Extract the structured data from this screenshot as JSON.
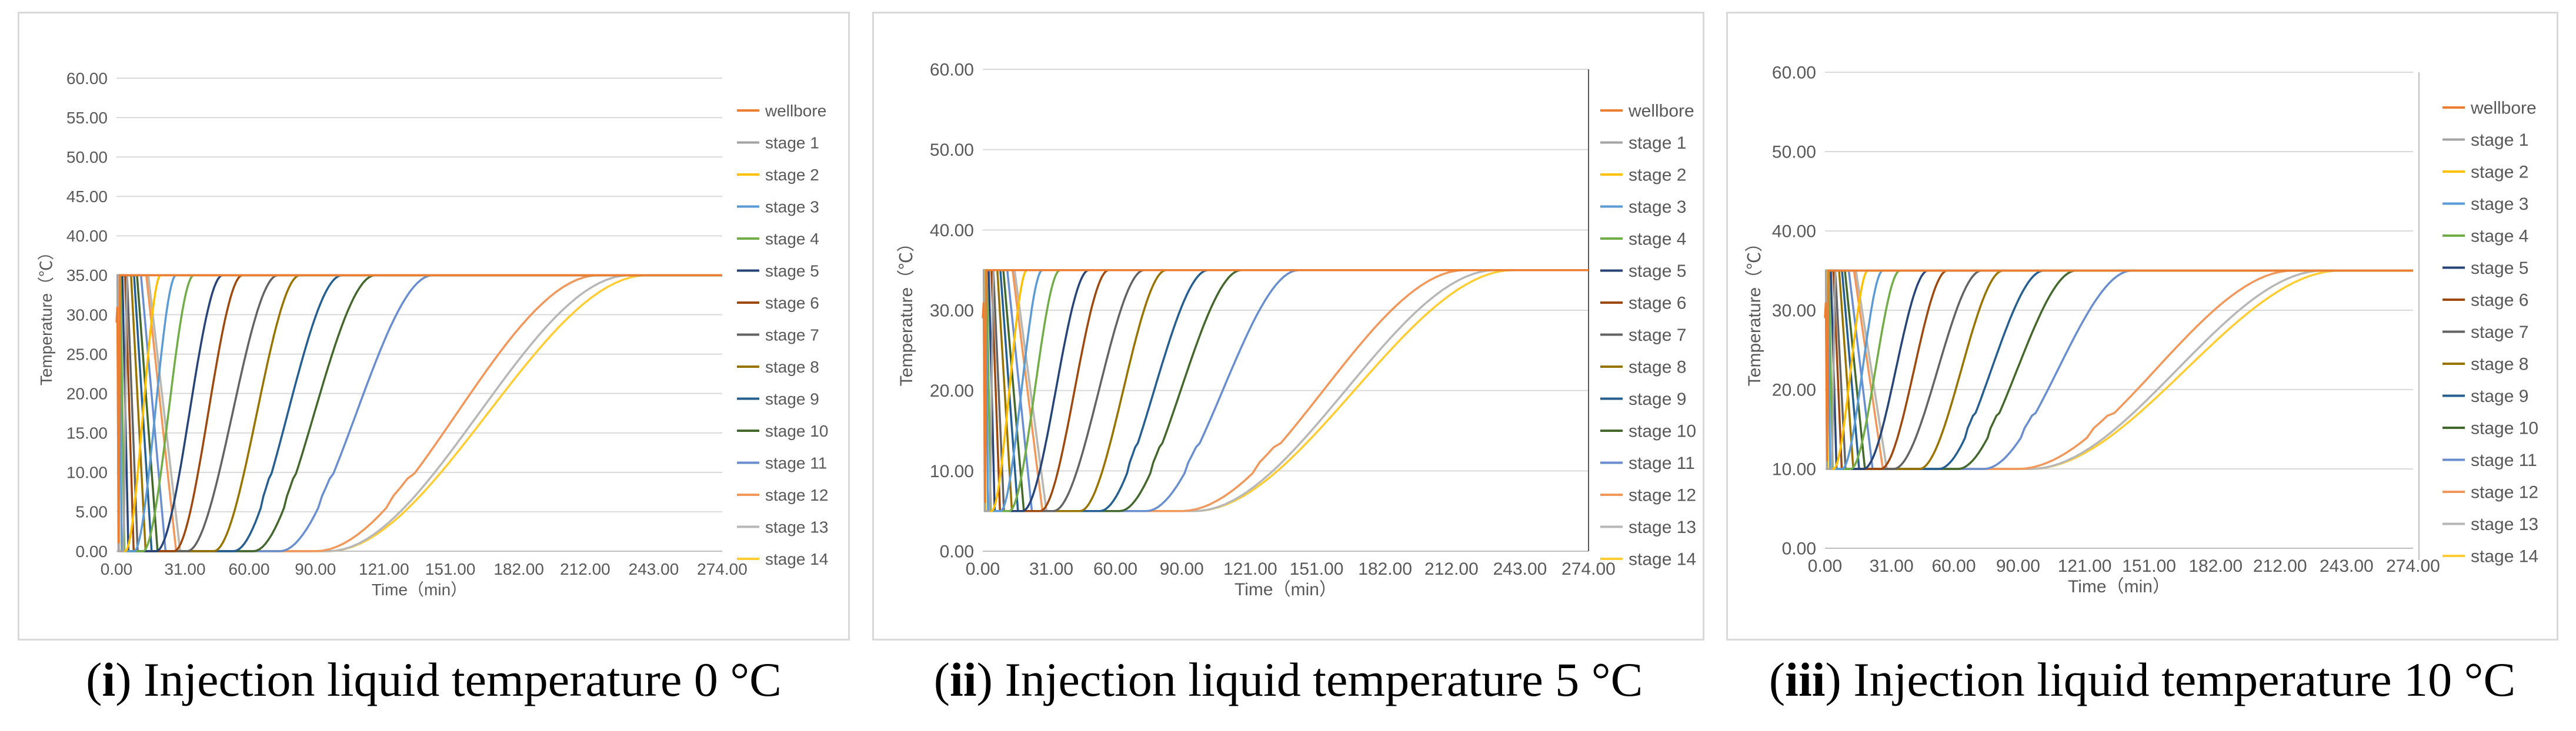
{
  "series_names": [
    "wellbore",
    "stage 1",
    "stage 2",
    "stage 3",
    "stage 4",
    "stage 5",
    "stage 6",
    "stage 7",
    "stage 8",
    "stage 9",
    "stage 10",
    "stage 11",
    "stage 12",
    "stage 13",
    "stage 14"
  ],
  "series_colors": [
    "#ED7D31",
    "#A5A5A5",
    "#FFC000",
    "#5B9BD5",
    "#70AD47",
    "#264478",
    "#9E480E",
    "#636363",
    "#997300",
    "#255E91",
    "#43682B",
    "#698ED0",
    "#F1975A",
    "#B7B7B7",
    "#FFCD33"
  ],
  "chart_data": [
    {
      "type": "line",
      "ylabel": "Temperature（℃）",
      "xlabel": "Time（min）",
      "xlim": [
        0,
        274
      ],
      "ylim": [
        0,
        60
      ],
      "yticks": [
        "0.00",
        "5.00",
        "10.00",
        "15.00",
        "20.00",
        "25.00",
        "30.00",
        "35.00",
        "40.00",
        "45.00",
        "50.00",
        "55.00",
        "60.00"
      ],
      "ytick_values": [
        0,
        5,
        10,
        15,
        20,
        25,
        30,
        35,
        40,
        45,
        50,
        55,
        60
      ],
      "xticks": [
        "0.00",
        "31.00",
        "60.00",
        "90.00",
        "121.00",
        "151.00",
        "182.00",
        "212.00",
        "243.00",
        "274.00"
      ],
      "xtick_values": [
        0,
        31,
        60,
        90,
        121,
        151,
        182,
        212,
        243,
        274
      ],
      "injection_temp": 0,
      "initial_temp": 35,
      "drop_end": [
        1,
        3,
        4,
        8,
        12,
        18,
        26,
        32,
        44,
        53,
        62,
        74,
        90,
        96,
        96
      ],
      "recover_end": [
        2,
        5,
        20,
        27,
        35,
        48,
        57,
        73,
        83,
        102,
        117,
        143,
        218,
        232,
        240
      ],
      "caption_num": "i",
      "caption_text": " Injection liquid temperature 0 °C"
    },
    {
      "type": "line",
      "ylabel": "Temperature（℃）",
      "xlabel": "Time（min）",
      "xlim": [
        0,
        274
      ],
      "ylim": [
        0,
        60
      ],
      "yticks": [
        "0.00",
        "10.00",
        "20.00",
        "30.00",
        "40.00",
        "50.00",
        "60.00"
      ],
      "ytick_values": [
        0,
        10,
        20,
        30,
        40,
        50,
        60
      ],
      "xticks": [
        "0.00",
        "31.00",
        "60.00",
        "90.00",
        "121.00",
        "151.00",
        "182.00",
        "212.00",
        "243.00",
        "274.00"
      ],
      "xtick_values": [
        0,
        31,
        60,
        90,
        121,
        151,
        182,
        212,
        243,
        274
      ],
      "injection_temp": 5,
      "initial_temp": 35,
      "drop_end": [
        1,
        3,
        4,
        8,
        12,
        18,
        26,
        32,
        44,
        53,
        62,
        74,
        90,
        96,
        96
      ],
      "recover_end": [
        2,
        5,
        20,
        27,
        35,
        48,
        57,
        73,
        83,
        102,
        117,
        143,
        218,
        232,
        240
      ],
      "caption_num": "ii",
      "caption_text": " Injection liquid temperature 5 °C"
    },
    {
      "type": "line",
      "ylabel": "Temperature（℃）",
      "xlabel": "Time（min）",
      "xlim": [
        0,
        274
      ],
      "ylim": [
        0,
        60
      ],
      "yticks": [
        "0.00",
        "10.00",
        "20.00",
        "30.00",
        "40.00",
        "50.00",
        "60.00"
      ],
      "ytick_values": [
        0,
        10,
        20,
        30,
        40,
        50,
        60
      ],
      "xticks": [
        "0.00",
        "31.00",
        "60.00",
        "90.00",
        "121.00",
        "151.00",
        "182.00",
        "212.00",
        "243.00",
        "274.00"
      ],
      "xtick_values": [
        0,
        31,
        60,
        90,
        121,
        151,
        182,
        212,
        243,
        274
      ],
      "injection_temp": 10,
      "initial_temp": 35,
      "drop_end": [
        1,
        3,
        4,
        8,
        12,
        18,
        26,
        32,
        44,
        53,
        62,
        74,
        90,
        96,
        96
      ],
      "recover_end": [
        2,
        5,
        20,
        27,
        35,
        48,
        57,
        73,
        83,
        102,
        117,
        143,
        218,
        232,
        240
      ],
      "caption_num": "iii",
      "caption_text": " Injection liquid temperature 10 °C"
    }
  ]
}
